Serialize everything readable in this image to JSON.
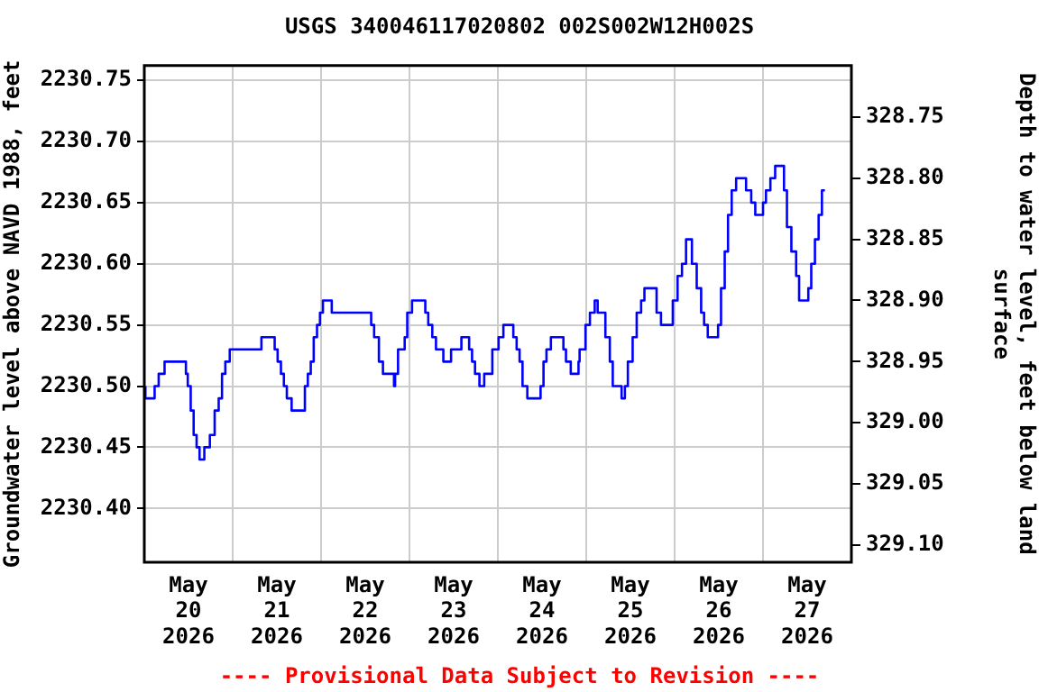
{
  "chart_data": {
    "type": "step",
    "title": "USGS 340046117020802 002S002W12H002S",
    "ylabel": "Groundwater level above NAVD 1988, feet",
    "y2label": "Depth to water level, feet below land surface",
    "annotations": [
      "---- Provisional Data Subject to Revision ----"
    ],
    "x": [
      "2026-05-20T00:18",
      "2026-05-20T02:48",
      "2026-05-20T03:54",
      "2026-05-20T05:30",
      "2026-05-20T06:54",
      "2026-05-20T11:18",
      "2026-05-20T11:48",
      "2026-05-20T12:36",
      "2026-05-20T13:24",
      "2026-05-20T14:12",
      "2026-05-20T15:00",
      "2026-05-20T16:18",
      "2026-05-20T17:48",
      "2026-05-20T19:06",
      "2026-05-20T20:12",
      "2026-05-20T21:06",
      "2026-05-20T22:00",
      "2026-05-20T23:12",
      "2026-05-21T00:18",
      "2026-05-21T07:48",
      "2026-05-21T08:30",
      "2026-05-21T11:24",
      "2026-05-21T12:12",
      "2026-05-21T13:06",
      "2026-05-21T13:54",
      "2026-05-21T14:42",
      "2026-05-21T16:00",
      "2026-05-21T19:36",
      "2026-05-21T20:24",
      "2026-05-21T21:12",
      "2026-05-21T22:00",
      "2026-05-21T22:54",
      "2026-05-21T23:42",
      "2026-05-22T00:30",
      "2026-05-22T01:18",
      "2026-05-22T02:54",
      "2026-05-22T03:48",
      "2026-05-22T13:36",
      "2026-05-22T14:24",
      "2026-05-22T15:42",
      "2026-05-22T16:48",
      "2026-05-22T17:36",
      "2026-05-22T19:48",
      "2026-05-22T20:06",
      "2026-05-22T20:54",
      "2026-05-22T22:42",
      "2026-05-22T23:24",
      "2026-05-23T00:42",
      "2026-05-23T01:30",
      "2026-05-23T04:18",
      "2026-05-23T05:06",
      "2026-05-23T06:12",
      "2026-05-23T07:12",
      "2026-05-23T08:00",
      "2026-05-23T09:12",
      "2026-05-23T09:48",
      "2026-05-23T11:18",
      "2026-05-23T12:06",
      "2026-05-23T14:06",
      "2026-05-23T15:12",
      "2026-05-23T16:12",
      "2026-05-23T17:00",
      "2026-05-23T17:48",
      "2026-05-23T19:00",
      "2026-05-23T20:18",
      "2026-05-23T22:30",
      "2026-05-24T00:12",
      "2026-05-24T01:30",
      "2026-05-24T02:36",
      "2026-05-24T04:12",
      "2026-05-24T05:06",
      "2026-05-24T05:54",
      "2026-05-24T06:42",
      "2026-05-24T08:00",
      "2026-05-24T09:06",
      "2026-05-24T11:36",
      "2026-05-24T12:24",
      "2026-05-24T13:12",
      "2026-05-24T14:24",
      "2026-05-24T15:24",
      "2026-05-24T17:48",
      "2026-05-24T18:30",
      "2026-05-24T19:48",
      "2026-05-24T21:54",
      "2026-05-24T22:12",
      "2026-05-24T23:48",
      "2026-05-25T01:00",
      "2026-05-25T02:18",
      "2026-05-25T03:06",
      "2026-05-25T03:54",
      "2026-05-25T05:12",
      "2026-05-25T06:24",
      "2026-05-25T07:12",
      "2026-05-25T08:30",
      "2026-05-25T09:36",
      "2026-05-25T10:30",
      "2026-05-25T11:18",
      "2026-05-25T12:36",
      "2026-05-25T13:42",
      "2026-05-25T14:54",
      "2026-05-25T15:48",
      "2026-05-25T16:42",
      "2026-05-25T19:06",
      "2026-05-25T20:18",
      "2026-05-25T21:24",
      "2026-05-25T23:30",
      "2026-05-26T00:48",
      "2026-05-26T02:00",
      "2026-05-26T03:06",
      "2026-05-26T04:42",
      "2026-05-26T06:00",
      "2026-05-26T07:12",
      "2026-05-26T08:00",
      "2026-05-26T09:00",
      "2026-05-26T10:06",
      "2026-05-26T11:48",
      "2026-05-26T12:36",
      "2026-05-26T13:36",
      "2026-05-26T14:30",
      "2026-05-26T15:30",
      "2026-05-26T16:42",
      "2026-05-26T17:48",
      "2026-05-26T19:24",
      "2026-05-26T20:48",
      "2026-05-26T21:54",
      "2026-05-26T22:24",
      "2026-05-27T00:00",
      "2026-05-27T00:48",
      "2026-05-27T02:00",
      "2026-05-27T03:18",
      "2026-05-27T04:00",
      "2026-05-27T05:42",
      "2026-05-27T06:30",
      "2026-05-27T07:42",
      "2026-05-27T09:00",
      "2026-05-27T09:48",
      "2026-05-27T10:54",
      "2026-05-27T12:18",
      "2026-05-27T13:06",
      "2026-05-27T14:06",
      "2026-05-27T15:06",
      "2026-05-27T16:00",
      "2026-05-27T16:48"
    ],
    "series": [
      {
        "color": "#0000ff",
        "values": [
          2230.5,
          2230.49,
          2230.5,
          2230.51,
          2230.52,
          2230.52,
          2230.51,
          2230.5,
          2230.48,
          2230.46,
          2230.45,
          2230.44,
          2230.45,
          2230.46,
          2230.48,
          2230.49,
          2230.51,
          2230.52,
          2230.53,
          2230.53,
          2230.54,
          2230.54,
          2230.53,
          2230.52,
          2230.51,
          2230.5,
          2230.49,
          2230.48,
          2230.5,
          2230.51,
          2230.52,
          2230.54,
          2230.55,
          2230.56,
          2230.57,
          2230.57,
          2230.56,
          2230.56,
          2230.55,
          2230.54,
          2230.52,
          2230.51,
          2230.51,
          2230.5,
          2230.51,
          2230.53,
          2230.54,
          2230.56,
          2230.57,
          2230.57,
          2230.56,
          2230.55,
          2230.54,
          2230.53,
          2230.53,
          2230.52,
          2230.52,
          2230.53,
          2230.53,
          2230.54,
          2230.54,
          2230.53,
          2230.52,
          2230.51,
          2230.5,
          2230.51,
          2230.53,
          2230.54,
          2230.55,
          2230.55,
          2230.54,
          2230.53,
          2230.52,
          2230.5,
          2230.49,
          2230.49,
          2230.5,
          2230.52,
          2230.53,
          2230.54,
          2230.54,
          2230.53,
          2230.52,
          2230.51,
          2230.52,
          2230.53,
          2230.55,
          2230.56,
          2230.57,
          2230.56,
          2230.56,
          2230.54,
          2230.52,
          2230.5,
          2230.5,
          2230.49,
          2230.5,
          2230.52,
          2230.54,
          2230.56,
          2230.57,
          2230.58,
          2230.58,
          2230.56,
          2230.55,
          2230.55,
          2230.57,
          2230.59,
          2230.6,
          2230.62,
          2230.6,
          2230.58,
          2230.56,
          2230.55,
          2230.54,
          2230.54,
          2230.55,
          2230.58,
          2230.61,
          2230.64,
          2230.66,
          2230.67,
          2230.67,
          2230.66,
          2230.65,
          2230.64,
          2230.64,
          2230.65,
          2230.66,
          2230.67,
          2230.68,
          2230.68,
          2230.66,
          2230.63,
          2230.61,
          2230.59,
          2230.57,
          2230.57,
          2230.58,
          2230.6,
          2230.62,
          2230.64,
          2230.66
        ]
      }
    ],
    "xlim": [
      "2026-05-20T00:00",
      "2026-05-28T00:00"
    ],
    "xticks": [
      {
        "value": "2026-05-20T00:00",
        "label": null
      },
      {
        "value": "2026-05-20T12:00",
        "label": "May\n20\n2026"
      },
      {
        "value": "2026-05-21T00:00",
        "label": null
      },
      {
        "value": "2026-05-21T12:00",
        "label": "May\n21\n2026"
      },
      {
        "value": "2026-05-22T00:00",
        "label": null
      },
      {
        "value": "2026-05-22T12:00",
        "label": "May\n22\n2026"
      },
      {
        "value": "2026-05-23T00:00",
        "label": null
      },
      {
        "value": "2026-05-23T12:00",
        "label": "May\n23\n2026"
      },
      {
        "value": "2026-05-24T00:00",
        "label": null
      },
      {
        "value": "2026-05-24T12:00",
        "label": "May\n24\n2026"
      },
      {
        "value": "2026-05-25T00:00",
        "label": null
      },
      {
        "value": "2026-05-25T12:00",
        "label": "May\n25\n2026"
      },
      {
        "value": "2026-05-26T00:00",
        "label": null
      },
      {
        "value": "2026-05-26T12:00",
        "label": "May\n26\n2026"
      },
      {
        "value": "2026-05-27T00:00",
        "label": null
      },
      {
        "value": "2026-05-27T12:00",
        "label": "May\n27\n2026"
      },
      {
        "value": "2026-05-28T00:00",
        "label": null
      }
    ],
    "ylim": [
      2230.356,
      2230.762
    ],
    "yticks": [
      {
        "value": 2230.4,
        "label": "2230.40"
      },
      {
        "value": 2230.45,
        "label": "2230.45"
      },
      {
        "value": 2230.5,
        "label": "2230.50"
      },
      {
        "value": 2230.55,
        "label": "2230.55"
      },
      {
        "value": 2230.6,
        "label": "2230.60"
      },
      {
        "value": 2230.65,
        "label": "2230.65"
      },
      {
        "value": 2230.7,
        "label": "2230.70"
      },
      {
        "value": 2230.75,
        "label": "2230.75"
      }
    ],
    "y2lim": [
      329.114,
      328.708
    ],
    "y2ticks": [
      {
        "value": 328.75,
        "label": "328.75"
      },
      {
        "value": 328.8,
        "label": "328.80"
      },
      {
        "value": 328.85,
        "label": "328.85"
      },
      {
        "value": 328.9,
        "label": "328.90"
      },
      {
        "value": 328.95,
        "label": "328.95"
      },
      {
        "value": 329.0,
        "label": "329.00"
      },
      {
        "value": 329.05,
        "label": "329.05"
      },
      {
        "value": 329.1,
        "label": "329.10"
      }
    ],
    "grid": true,
    "legend": false,
    "marker": "none",
    "line_style": "solid"
  }
}
